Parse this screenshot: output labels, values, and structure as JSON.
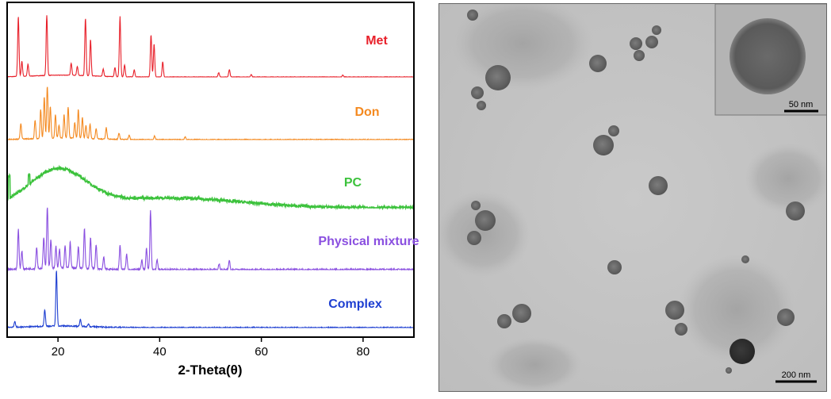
{
  "xrd": {
    "xlabel": "2-Theta(θ)",
    "colors": {
      "met": "#e8202a",
      "don": "#f4891f",
      "pc": "#3cc23c",
      "physical_mixture": "#8a4fe0",
      "complex": "#1e3fd1"
    }
  },
  "chart_data": {
    "type": "line",
    "xlabel": "2-Theta(θ)",
    "ylabel": "",
    "xlim": [
      10,
      90
    ],
    "xticks": [
      20,
      40,
      60,
      80
    ],
    "legend": "series labels placed to the right above each trace",
    "series": [
      {
        "name": "Met",
        "color": "#e8202a",
        "kind": "peaks",
        "peaks": [
          [
            12.2,
            1.0
          ],
          [
            12.9,
            0.25
          ],
          [
            14.1,
            0.2
          ],
          [
            17.8,
            1.0
          ],
          [
            22.6,
            0.2
          ],
          [
            23.8,
            0.15
          ],
          [
            25.4,
            0.95
          ],
          [
            26.4,
            0.6
          ],
          [
            28.9,
            0.12
          ],
          [
            31.2,
            0.15
          ],
          [
            32.2,
            1.0
          ],
          [
            33.1,
            0.2
          ],
          [
            35.0,
            0.12
          ],
          [
            38.3,
            0.7
          ],
          [
            38.9,
            0.55
          ],
          [
            40.6,
            0.25
          ],
          [
            51.6,
            0.07
          ],
          [
            53.7,
            0.12
          ],
          [
            58.0,
            0.04
          ],
          [
            76.0,
            0.03
          ]
        ]
      },
      {
        "name": "Don",
        "color": "#f4891f",
        "kind": "peaks",
        "peaks": [
          [
            12.7,
            0.3
          ],
          [
            15.5,
            0.35
          ],
          [
            16.6,
            0.55
          ],
          [
            17.3,
            0.8
          ],
          [
            17.9,
            1.0
          ],
          [
            18.5,
            0.6
          ],
          [
            19.5,
            0.45
          ],
          [
            20.2,
            0.25
          ],
          [
            21.2,
            0.45
          ],
          [
            22.0,
            0.6
          ],
          [
            23.3,
            0.3
          ],
          [
            24.0,
            0.55
          ],
          [
            24.8,
            0.4
          ],
          [
            25.5,
            0.25
          ],
          [
            26.3,
            0.28
          ],
          [
            27.5,
            0.2
          ],
          [
            29.5,
            0.22
          ],
          [
            32.0,
            0.12
          ],
          [
            34.0,
            0.08
          ],
          [
            39.0,
            0.07
          ],
          [
            45.0,
            0.05
          ]
        ]
      },
      {
        "name": "PC",
        "color": "#3cc23c",
        "kind": "amorphous",
        "halo": [
          20.0,
          5.5
        ],
        "baseline_hump": [
          42,
          14
        ]
      },
      {
        "name": "Physical mixture",
        "color": "#8a4fe0",
        "kind": "peaks",
        "peaks": [
          [
            12.2,
            0.65
          ],
          [
            12.9,
            0.3
          ],
          [
            15.8,
            0.35
          ],
          [
            17.2,
            0.5
          ],
          [
            17.9,
            1.0
          ],
          [
            18.6,
            0.45
          ],
          [
            19.6,
            0.35
          ],
          [
            20.3,
            0.3
          ],
          [
            21.4,
            0.35
          ],
          [
            22.4,
            0.42
          ],
          [
            24.0,
            0.35
          ],
          [
            25.2,
            0.65
          ],
          [
            26.4,
            0.5
          ],
          [
            27.5,
            0.4
          ],
          [
            29.0,
            0.2
          ],
          [
            32.2,
            0.4
          ],
          [
            33.5,
            0.25
          ],
          [
            36.5,
            0.15
          ],
          [
            37.4,
            0.35
          ],
          [
            38.2,
            0.95
          ],
          [
            39.5,
            0.15
          ],
          [
            51.7,
            0.1
          ],
          [
            53.7,
            0.14
          ]
        ]
      },
      {
        "name": "Complex",
        "color": "#1e3fd1",
        "kind": "peaks",
        "peaks": [
          [
            11.5,
            0.1
          ],
          [
            17.4,
            0.3
          ],
          [
            19.7,
            1.0
          ],
          [
            24.4,
            0.12
          ],
          [
            26.0,
            0.05
          ]
        ]
      }
    ]
  },
  "tem": {
    "scale_large": "200 nm",
    "scale_inset": "50 nm"
  }
}
